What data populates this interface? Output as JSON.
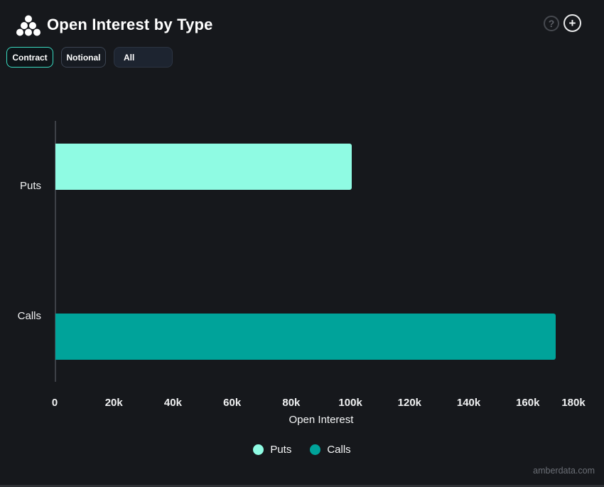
{
  "header": {
    "title": "Open Interest by Type",
    "logo_icon": "amberdata-dots-logo",
    "help_glyph": "?",
    "add_glyph": "+"
  },
  "toolbar": {
    "contract_label": "Contract",
    "notional_label": "Notional",
    "all_label": "All"
  },
  "chart_data": {
    "type": "bar",
    "orientation": "horizontal",
    "title": "Open Interest by Type",
    "categories": [
      "Puts",
      "Calls"
    ],
    "values": [
      100100,
      169300
    ],
    "series_colors": [
      "#8FFBE3",
      "#00A39A"
    ],
    "xlabel": "Open Interest",
    "ylabel": "",
    "xlim": [
      0,
      180000
    ],
    "x_tick_labels": [
      "0",
      "20k",
      "40k",
      "60k",
      "80k",
      "100k",
      "120k",
      "140k",
      "160k",
      "180k"
    ],
    "grid": false,
    "legend_position": "bottom",
    "legend": [
      {
        "label": "Puts",
        "color": "#8FFBE3"
      },
      {
        "label": "Calls",
        "color": "#00A39A"
      }
    ]
  },
  "footer": {
    "watermark": "amberdata.com"
  }
}
